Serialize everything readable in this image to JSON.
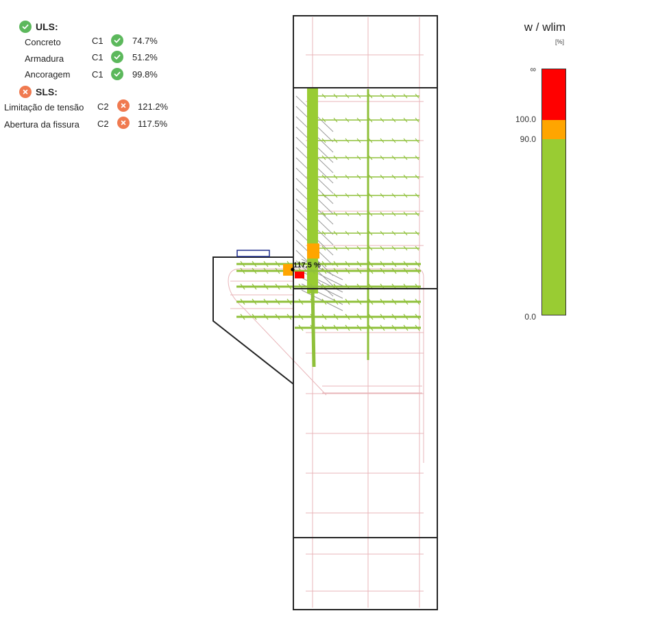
{
  "checks": {
    "uls": {
      "label": "ULS:",
      "status_icon": "check-circle-icon",
      "items": [
        {
          "label": "Concreto",
          "combo": "C1",
          "value": "74.7%",
          "status": "ok"
        },
        {
          "label": "Armadura",
          "combo": "C1",
          "value": "51.2%",
          "status": "ok"
        },
        {
          "label": "Ancoragem",
          "combo": "C1",
          "value": "99.8%",
          "status": "ok"
        }
      ]
    },
    "sls": {
      "label": "SLS:",
      "status_icon": "x-circle-icon",
      "items": [
        {
          "label": "Limitação de tensão",
          "combo": "C2",
          "value": "121.2%",
          "status": "fail"
        },
        {
          "label": "Abertura da fissura",
          "combo": "C2",
          "value": "117.5%",
          "status": "fail"
        }
      ]
    }
  },
  "drawing": {
    "annotation": "117.5 %"
  },
  "legend": {
    "title": "w / wlim",
    "unit": "[%]",
    "ticks": {
      "inf": "∞",
      "t100": "100.0",
      "t90": "90.0",
      "t0": "0.0"
    },
    "colors": {
      "red": "#ff0000",
      "orange": "#ffa500",
      "green": "#99cc33"
    }
  },
  "colors": {
    "ok": "#5cb85c",
    "fail": "#f07a50",
    "outline": "#222222",
    "rebar": "#e8b4b8",
    "strut": "#8fc03a",
    "crack": "#9a9a9a",
    "plate": "#1b2a8a"
  }
}
